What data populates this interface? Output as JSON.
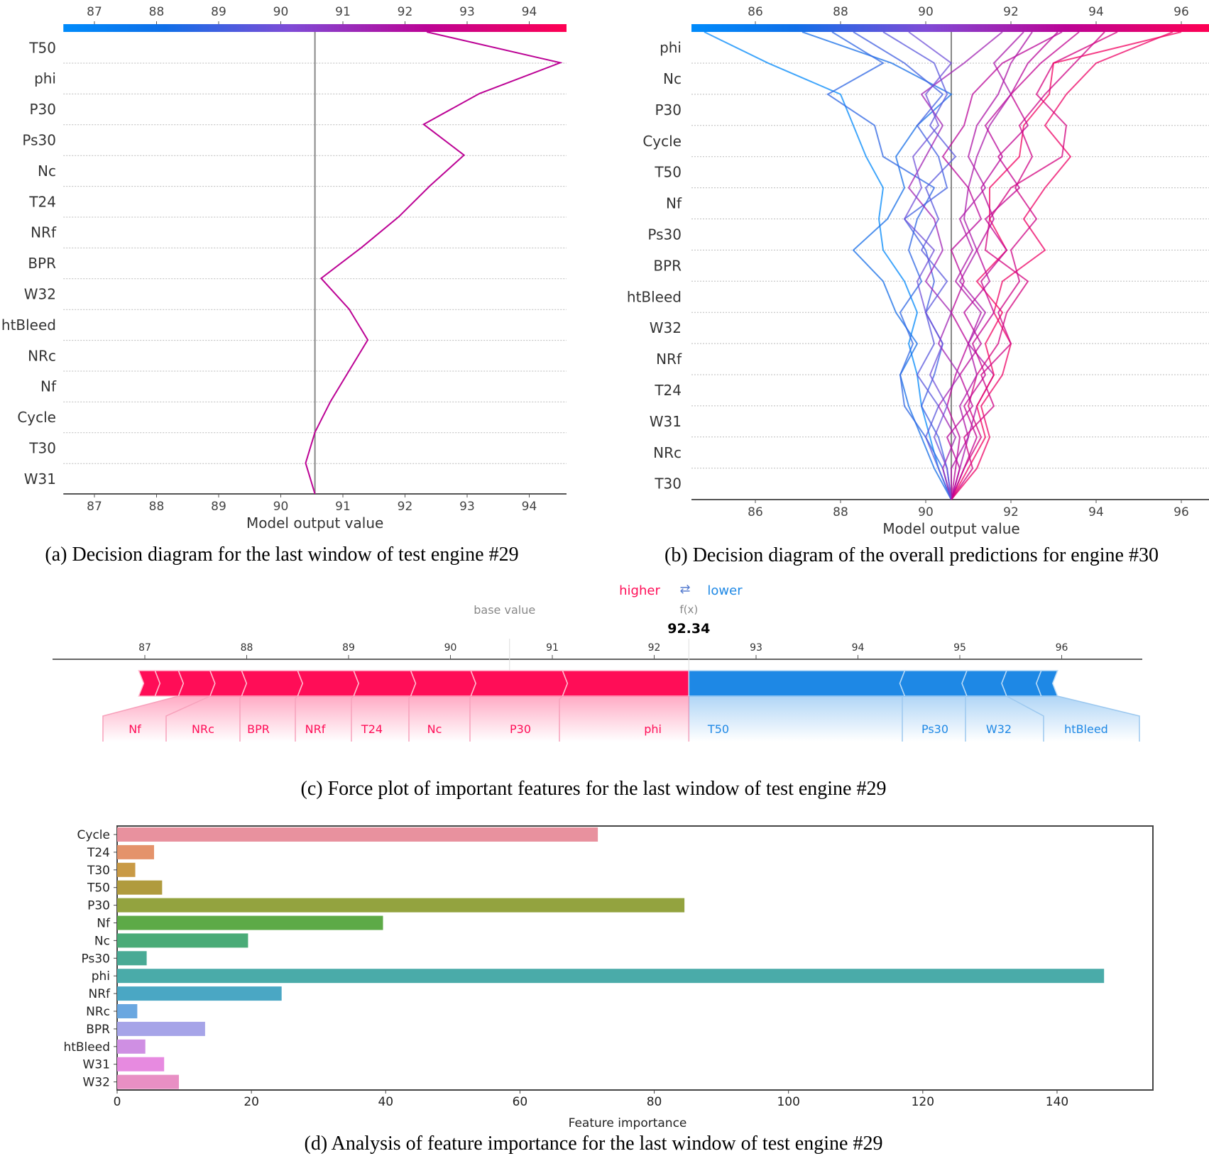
{
  "colors": {
    "higher": "#ff0d57",
    "lower": "#1e88e5",
    "cmap_low": "#008bfb",
    "cmap_high": "#ff0052"
  },
  "chart_data": [
    {
      "id": "a",
      "type": "line",
      "caption": "(a) Decision diagram for the last window of test engine #29",
      "xlabel": "Model output value",
      "xlim": [
        86.5,
        94.6
      ],
      "xticks": [
        87,
        88,
        89,
        90,
        91,
        92,
        93,
        94
      ],
      "base_value": 90.55,
      "features": [
        "T50",
        "phi",
        "P30",
        "Ps30",
        "Nc",
        "T24",
        "NRf",
        "BPR",
        "W32",
        "htBleed",
        "NRc",
        "Nf",
        "Cycle",
        "T30",
        "W31"
      ],
      "series": [
        {
          "values_bottom_to_top": [
            90.55,
            90.4,
            90.55,
            90.8,
            91.1,
            91.4,
            91.1,
            90.65,
            91.3,
            91.9,
            92.4,
            92.95,
            92.3,
            93.2,
            94.5,
            92.35
          ]
        }
      ]
    },
    {
      "id": "b",
      "type": "line",
      "caption": "(b) Decision diagram of the overall predictions for engine #30",
      "xlabel": "Model output value",
      "xlim": [
        84.5,
        96.7
      ],
      "xticks": [
        86,
        88,
        90,
        92,
        94,
        96
      ],
      "base_value": 90.6,
      "features": [
        "phi",
        "Nc",
        "P30",
        "Cycle",
        "T50",
        "Nf",
        "Ps30",
        "BPR",
        "htBleed",
        "W32",
        "NRf",
        "T24",
        "W31",
        "NRc",
        "T30"
      ],
      "series": [
        {
          "values_bottom_to_top": [
            90.6,
            90.3,
            90.1,
            89.9,
            89.8,
            89.6,
            89.8,
            89.5,
            89.0,
            88.9,
            89.0,
            88.6,
            88.3,
            88.0,
            86.3,
            84.8
          ]
        },
        {
          "values_bottom_to_top": [
            90.6,
            90.2,
            89.9,
            89.6,
            89.4,
            89.8,
            89.3,
            89.0,
            88.3,
            89.1,
            89.5,
            89.3,
            89.8,
            90.6,
            89.2,
            87.1
          ]
        },
        {
          "values_bottom_to_top": [
            90.6,
            90.4,
            90.0,
            89.5,
            89.4,
            89.7,
            89.4,
            89.9,
            89.6,
            89.8,
            90.2,
            89.0,
            88.8,
            87.7,
            89.0,
            87.8
          ]
        },
        {
          "values_bottom_to_top": [
            90.6,
            90.5,
            90.3,
            89.9,
            90.2,
            90.4,
            90.0,
            90.2,
            90.0,
            89.5,
            90.5,
            90.3,
            89.8,
            90.4,
            89.5,
            88.3
          ]
        },
        {
          "values_bottom_to_top": [
            90.6,
            90.8,
            91.0,
            91.2,
            91.6,
            91.0,
            91.4,
            90.8,
            91.2,
            90.9,
            91.0,
            91.2,
            91.5,
            92.0,
            91.6,
            92.3
          ]
        },
        {
          "values_bottom_to_top": [
            90.6,
            91.2,
            91.5,
            91.3,
            91.8,
            92.0,
            91.6,
            91.8,
            92.8,
            92.3,
            92.8,
            93.4,
            92.8,
            93.3,
            94.0,
            95.8
          ]
        },
        {
          "values_bottom_to_top": [
            90.6,
            90.9,
            91.3,
            91.0,
            91.2,
            91.7,
            91.9,
            92.4,
            91.4,
            91.5,
            92.0,
            93.2,
            93.3,
            92.6,
            93.0,
            94.5
          ]
        },
        {
          "values_bottom_to_top": [
            90.6,
            90.7,
            90.8,
            90.5,
            90.7,
            91.0,
            90.6,
            90.9,
            90.6,
            91.3,
            91.0,
            90.4,
            90.9,
            91.1,
            91.8,
            93.2
          ]
        },
        {
          "values_bottom_to_top": [
            90.6,
            91.0,
            91.4,
            91.2,
            91.6,
            91.4,
            91.8,
            91.2,
            91.9,
            91.5,
            91.5,
            92.2,
            92.3,
            92.9,
            93.0,
            96.0
          ]
        },
        {
          "values_bottom_to_top": [
            90.6,
            90.4,
            90.7,
            90.3,
            90.8,
            90.3,
            90.6,
            90.0,
            90.4,
            90.2,
            89.6,
            90.0,
            90.4,
            89.9,
            90.9,
            91.8
          ]
        },
        {
          "values_bottom_to_top": [
            90.6,
            90.6,
            91.0,
            90.8,
            91.2,
            91.0,
            91.3,
            90.7,
            91.1,
            90.8,
            91.4,
            91.0,
            91.2,
            91.7,
            92.0,
            92.5
          ]
        },
        {
          "values_bottom_to_top": [
            90.6,
            90.3,
            90.0,
            90.3,
            89.8,
            90.2,
            90.0,
            90.5,
            89.9,
            90.3,
            90.0,
            90.7,
            90.1,
            90.5,
            90.2,
            89.0
          ]
        },
        {
          "values_bottom_to_top": [
            90.6,
            90.8,
            90.5,
            91.1,
            90.8,
            91.3,
            90.9,
            91.5,
            91.2,
            91.6,
            91.3,
            91.8,
            91.4,
            92.0,
            92.4,
            93.1
          ]
        },
        {
          "values_bottom_to_top": [
            90.6,
            91.1,
            90.9,
            91.6,
            91.3,
            92.0,
            91.7,
            92.2,
            92.0,
            92.6,
            92.1,
            92.5,
            92.2,
            92.8,
            93.5,
            94.2
          ]
        },
        {
          "values_bottom_to_top": [
            90.6,
            90.5,
            90.2,
            90.5,
            90.1,
            90.4,
            90.0,
            89.8,
            90.2,
            89.5,
            89.9,
            89.7,
            90.3,
            90.0,
            90.6,
            89.6
          ]
        },
        {
          "values_bottom_to_top": [
            90.6,
            90.9,
            91.2,
            90.9,
            91.4,
            91.1,
            91.6,
            91.3,
            91.9,
            91.4,
            92.2,
            91.7,
            92.4,
            92.0,
            92.7,
            93.6
          ]
        }
      ]
    },
    {
      "id": "c",
      "type": "bar",
      "subtype": "force",
      "caption": "(c) Force plot of important features for the last window of test engine #29",
      "legend_higher": "higher",
      "legend_arrow": "⇄",
      "legend_lower": "lower",
      "base_value_label": "base value",
      "fx_label": "f(x)",
      "fx_value": "92.34",
      "base_value": 90.58,
      "xticks": [
        87,
        88,
        89,
        90,
        91,
        92,
        93,
        94,
        95,
        96
      ],
      "positive_segments": [
        {
          "feature": "",
          "from": 86.94,
          "to": 87.1
        },
        {
          "feature": "",
          "from": 87.1,
          "to": 87.33
        },
        {
          "feature": "Nf",
          "from": 87.33,
          "to": 87.64
        },
        {
          "feature": "NRc",
          "from": 87.64,
          "to": 87.95
        },
        {
          "feature": "BPR",
          "from": 87.95,
          "to": 88.5
        },
        {
          "feature": "NRf",
          "from": 88.5,
          "to": 89.05
        },
        {
          "feature": "T24",
          "from": 89.05,
          "to": 89.61
        },
        {
          "feature": "Nc",
          "from": 89.61,
          "to": 90.2
        },
        {
          "feature": "P30",
          "from": 90.2,
          "to": 91.1
        },
        {
          "feature": "phi",
          "from": 91.1,
          "to": 92.34
        }
      ],
      "negative_segments": [
        {
          "feature": "T50",
          "from": 92.34,
          "to": 94.46
        },
        {
          "feature": "Ps30",
          "from": 94.46,
          "to": 95.07
        },
        {
          "feature": "W32",
          "from": 95.07,
          "to": 95.46
        },
        {
          "feature": "",
          "from": 95.46,
          "to": 95.8
        },
        {
          "feature": "htBleed",
          "from": 95.8,
          "to": 95.96
        }
      ]
    },
    {
      "id": "d",
      "type": "bar",
      "orientation": "horizontal",
      "caption": "(d) Analysis of feature importance for the last window of test engine #29",
      "xlabel": "Feature importance",
      "xlim": [
        0,
        154.5
      ],
      "xticks": [
        0,
        20,
        40,
        60,
        80,
        100,
        120,
        140
      ],
      "categories": [
        "Cycle",
        "T24",
        "T30",
        "T50",
        "P30",
        "Nf",
        "Nc",
        "Ps30",
        "phi",
        "NRf",
        "NRc",
        "BPR",
        "htBleed",
        "W31",
        "W32"
      ],
      "values": [
        71.6,
        5.5,
        2.7,
        6.7,
        84.5,
        39.6,
        19.5,
        4.4,
        147.0,
        24.5,
        3.0,
        13.1,
        4.2,
        7.0,
        9.2
      ],
      "bar_colors": [
        "#e8919e",
        "#e4936b",
        "#c99a45",
        "#b09b3e",
        "#93a33f",
        "#5daa47",
        "#4aab77",
        "#49aa95",
        "#4aaba9",
        "#4aa7c4",
        "#6aa7e0",
        "#a6a4e8",
        "#cf8fe3",
        "#e78ae0",
        "#e88fc4"
      ]
    }
  ]
}
